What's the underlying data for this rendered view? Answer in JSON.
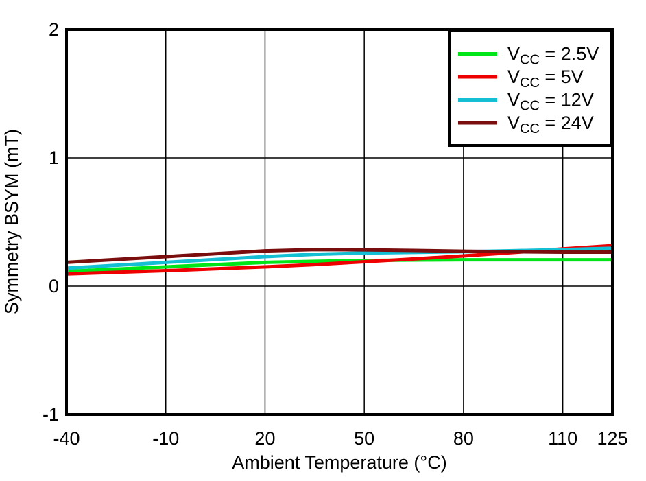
{
  "figure": {
    "background": "#ffffff",
    "border_color": "#000000"
  },
  "chart_data": {
    "type": "line",
    "title": "",
    "xlabel": "Ambient Temperature (°C)",
    "ylabel": "Symmetry BSYM (mT)",
    "xlim": [
      -40,
      125
    ],
    "ylim": [
      -1,
      2
    ],
    "x_ticks": [
      -40,
      -10,
      20,
      50,
      80,
      110,
      125
    ],
    "y_ticks": [
      -1,
      0,
      1,
      2
    ],
    "x_gridlines": [
      -10,
      20,
      50,
      80,
      110
    ],
    "y_gridlines": [
      0,
      1
    ],
    "grid": true,
    "legend_position": "top-right",
    "x": [
      -40,
      -10,
      20,
      35,
      50,
      65,
      80,
      95,
      110,
      125
    ],
    "series": [
      {
        "name": "VCC = 2.5V",
        "legend": {
          "sym": "V",
          "sub": "CC",
          "rest": " = 2.5V"
        },
        "color": "#00E517",
        "values": [
          0.115,
          0.15,
          0.185,
          0.193,
          0.2,
          0.203,
          0.205,
          0.205,
          0.205,
          0.205
        ]
      },
      {
        "name": "VCC = 5V",
        "legend": {
          "sym": "V",
          "sub": "CC",
          "rest": " = 5V"
        },
        "color": "#EE0000",
        "values": [
          0.095,
          0.12,
          0.15,
          0.168,
          0.19,
          0.212,
          0.235,
          0.262,
          0.29,
          0.315
        ]
      },
      {
        "name": "VCC = 12V",
        "legend": {
          "sym": "V",
          "sub": "CC",
          "rest": " = 12V"
        },
        "color": "#14BFD4",
        "values": [
          0.14,
          0.185,
          0.23,
          0.248,
          0.258,
          0.263,
          0.268,
          0.276,
          0.285,
          0.295
        ]
      },
      {
        "name": "VCC = 24V",
        "legend": {
          "sym": "V",
          "sub": "CC",
          "rest": " = 24V"
        },
        "color": "#7A0D0D",
        "values": [
          0.185,
          0.23,
          0.275,
          0.285,
          0.283,
          0.278,
          0.272,
          0.268,
          0.265,
          0.265
        ]
      }
    ]
  }
}
